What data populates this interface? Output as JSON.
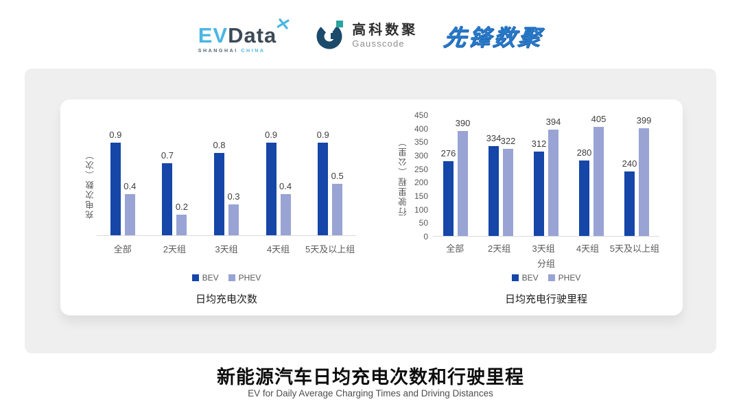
{
  "colors": {
    "series": [
      "#1546A8",
      "#99A3D4"
    ],
    "axis_text": "#595959",
    "panel_bg": "#EFEFEF",
    "accent_blue": "#2878C8"
  },
  "header": {
    "evdata": {
      "ev": "EV",
      "data": "Data",
      "sub_left": "SHANGHAI",
      "sub_right": "CHINA"
    },
    "gausscode": {
      "cn": "高科数聚",
      "en": "Gausscode"
    },
    "xianfeng": "先锋数聚"
  },
  "footer": {
    "title": "新能源汽车日均充电次数和行驶里程",
    "subtitle": "EV for Daily Average Charging Times and Driving Distances"
  },
  "chart_data": [
    {
      "type": "bar",
      "title": "日均充电次数",
      "ylabel": "充电次数（次）",
      "xlabel": "",
      "categories": [
        "全部",
        "2天组",
        "3天组",
        "4天组",
        "5天及以上组"
      ],
      "series": [
        {
          "name": "BEV",
          "color": "#1546A8",
          "values": [
            0.9,
            0.7,
            0.8,
            0.9,
            0.9
          ]
        },
        {
          "name": "PHEV",
          "color": "#99A3D4",
          "values": [
            0.4,
            0.2,
            0.3,
            0.4,
            0.5
          ]
        }
      ],
      "ylim": [
        0,
        1.0
      ],
      "yticks": [],
      "grid": false,
      "legend_position": "bottom"
    },
    {
      "type": "bar",
      "title": "日均充电行驶里程",
      "ylabel": "行驶里程（公里）",
      "xlabel": "分组",
      "categories": [
        "全部",
        "2天组",
        "3天组",
        "4天组",
        "5天及以上组"
      ],
      "series": [
        {
          "name": "BEV",
          "color": "#1546A8",
          "values": [
            276,
            334,
            312,
            280,
            240
          ]
        },
        {
          "name": "PHEV",
          "color": "#99A3D4",
          "values": [
            390,
            322,
            394,
            405,
            399
          ]
        }
      ],
      "ylim": [
        0,
        450
      ],
      "yticks": [
        0,
        50,
        100,
        150,
        200,
        250,
        300,
        350,
        400,
        450
      ],
      "grid": false,
      "legend_position": "bottom"
    }
  ]
}
